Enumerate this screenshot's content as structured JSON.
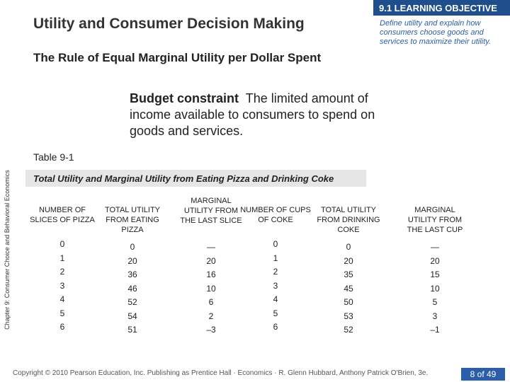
{
  "header": {
    "title": "Utility and Consumer Decision Making"
  },
  "objective": {
    "heading": "9.1 LEARNING OBJECTIVE",
    "text": "Define utility and explain how consumers choose goods and services to maximize their utility."
  },
  "subtitle": "The Rule of Equal Marginal Utility per Dollar Spent",
  "definition": {
    "term": "Budget constraint",
    "text": "The limited amount of income available to consumers to spend on goods and services."
  },
  "side_label": "Chapter 9: Consumer Choice and Behavioral Economics",
  "table": {
    "label": "Table 9-1",
    "caption": "Total Utility and Marginal Utility from Eating Pizza and Drinking Coke",
    "headers": [
      "NUMBER OF SLICES OF PIZZA",
      "TOTAL UTILITY FROM EATING PIZZA",
      "MARGINAL UTILITY FROM THE LAST SLICE",
      "NUMBER OF CUPS OF COKE",
      "TOTAL UTILITY FROM DRINKING COKE",
      "MARGINAL UTILITY FROM THE LAST CUP"
    ],
    "rows": [
      [
        "0",
        "0",
        "—",
        "0",
        "0",
        "—"
      ],
      [
        "1",
        "20",
        "20",
        "1",
        "20",
        "20"
      ],
      [
        "2",
        "36",
        "16",
        "2",
        "35",
        "15"
      ],
      [
        "3",
        "46",
        "10",
        "3",
        "45",
        "10"
      ],
      [
        "4",
        "52",
        "6",
        "4",
        "50",
        "5"
      ],
      [
        "5",
        "54",
        "2",
        "5",
        "53",
        "3"
      ],
      [
        "6",
        "51",
        "–3",
        "6",
        "52",
        "–1"
      ]
    ]
  },
  "footer": {
    "copyright": "Copyright © 2010 Pearson Education, Inc. Publishing as Prentice Hall · Economics · R. Glenn Hubbard, Anthony Patrick O'Brien, 3e.",
    "page": "8 of 49"
  }
}
